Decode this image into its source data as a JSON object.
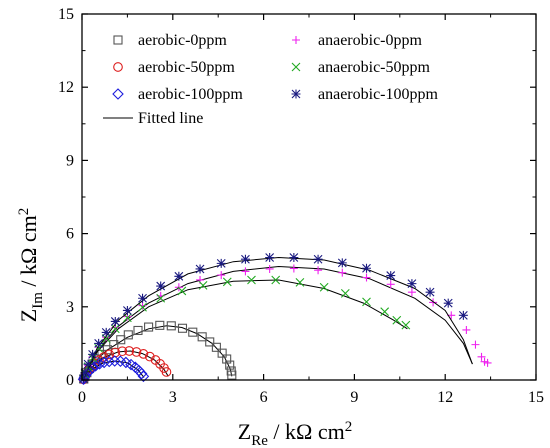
{
  "chart_data": {
    "type": "scatter",
    "xlabel": {
      "main": "Z",
      "sub": "Re",
      "rest": " / kΩ cm",
      "sup": "2"
    },
    "ylabel": {
      "main": "Z",
      "sub": "Im",
      "rest": " / kΩ cm",
      "sup": "2"
    },
    "xlim": [
      0,
      15
    ],
    "ylim": [
      0,
      15
    ],
    "xticks": [
      0,
      3,
      6,
      9,
      12,
      15
    ],
    "yticks": [
      0,
      3,
      6,
      9,
      12,
      15
    ],
    "xtick_labels": [
      "0",
      "3",
      "6",
      "9",
      "12",
      "15"
    ],
    "ytick_labels": [
      "0",
      "3",
      "6",
      "9",
      "12",
      "15"
    ],
    "legend_position": "top",
    "series": [
      {
        "name": "aerobic-0ppm",
        "marker": "square",
        "color": "#555555",
        "points": [
          [
            0.06,
            0.04
          ],
          [
            0.1,
            0.15
          ],
          [
            0.16,
            0.3
          ],
          [
            0.25,
            0.47
          ],
          [
            0.36,
            0.66
          ],
          [
            0.5,
            0.86
          ],
          [
            0.66,
            1.05
          ],
          [
            0.84,
            1.24
          ],
          [
            1.05,
            1.45
          ],
          [
            1.28,
            1.65
          ],
          [
            1.53,
            1.85
          ],
          [
            1.85,
            2.03
          ],
          [
            2.2,
            2.17
          ],
          [
            2.57,
            2.24
          ],
          [
            2.95,
            2.22
          ],
          [
            3.32,
            2.12
          ],
          [
            3.66,
            1.96
          ],
          [
            3.97,
            1.77
          ],
          [
            4.22,
            1.56
          ],
          [
            4.44,
            1.34
          ],
          [
            4.63,
            1.1
          ],
          [
            4.78,
            0.86
          ],
          [
            4.88,
            0.61
          ],
          [
            4.93,
            0.37
          ],
          [
            4.95,
            0.2
          ]
        ],
        "fit": [
          [
            0.05,
            0.02
          ],
          [
            0.3,
            0.6
          ],
          [
            0.8,
            1.2
          ],
          [
            1.5,
            1.75
          ],
          [
            2.2,
            2.1
          ],
          [
            2.8,
            2.22
          ],
          [
            3.3,
            2.15
          ],
          [
            3.8,
            1.9
          ],
          [
            4.3,
            1.5
          ],
          [
            4.7,
            0.95
          ],
          [
            4.9,
            0.45
          ],
          [
            4.95,
            0.15
          ]
        ]
      },
      {
        "name": "aerobic-50ppm",
        "marker": "circle",
        "color": "#dd1c1c",
        "points": [
          [
            0.05,
            0.03
          ],
          [
            0.09,
            0.12
          ],
          [
            0.14,
            0.24
          ],
          [
            0.22,
            0.38
          ],
          [
            0.31,
            0.52
          ],
          [
            0.42,
            0.67
          ],
          [
            0.56,
            0.81
          ],
          [
            0.72,
            0.94
          ],
          [
            0.9,
            1.05
          ],
          [
            1.1,
            1.13
          ],
          [
            1.33,
            1.18
          ],
          [
            1.56,
            1.19
          ],
          [
            1.8,
            1.15
          ],
          [
            2.03,
            1.07
          ],
          [
            2.24,
            0.96
          ],
          [
            2.43,
            0.82
          ],
          [
            2.58,
            0.66
          ],
          [
            2.71,
            0.49
          ],
          [
            2.79,
            0.33
          ]
        ],
        "fit": [
          [
            0.05,
            0.02
          ],
          [
            0.3,
            0.5
          ],
          [
            0.7,
            0.92
          ],
          [
            1.2,
            1.15
          ],
          [
            1.6,
            1.19
          ],
          [
            2.0,
            1.08
          ],
          [
            2.4,
            0.82
          ],
          [
            2.7,
            0.45
          ],
          [
            2.85,
            0.15
          ]
        ]
      },
      {
        "name": "aerobic-100ppm",
        "marker": "diamond",
        "color": "#1c1cdd",
        "points": [
          [
            0.05,
            0.03
          ],
          [
            0.08,
            0.1
          ],
          [
            0.12,
            0.19
          ],
          [
            0.18,
            0.29
          ],
          [
            0.25,
            0.39
          ],
          [
            0.34,
            0.49
          ],
          [
            0.45,
            0.58
          ],
          [
            0.58,
            0.66
          ],
          [
            0.73,
            0.72
          ],
          [
            0.9,
            0.76
          ],
          [
            1.08,
            0.78
          ],
          [
            1.27,
            0.77
          ],
          [
            1.45,
            0.72
          ],
          [
            1.62,
            0.63
          ],
          [
            1.76,
            0.52
          ],
          [
            1.88,
            0.39
          ],
          [
            1.97,
            0.26
          ],
          [
            2.03,
            0.15
          ]
        ],
        "fit": [
          [
            0.05,
            0.02
          ],
          [
            0.3,
            0.42
          ],
          [
            0.7,
            0.7
          ],
          [
            1.1,
            0.78
          ],
          [
            1.5,
            0.7
          ],
          [
            1.85,
            0.42
          ],
          [
            2.05,
            0.1
          ]
        ]
      },
      {
        "name": "anaerobic-0ppm",
        "marker": "plus",
        "color": "#ee22ee",
        "points": [
          [
            0.05,
            0.05
          ],
          [
            0.1,
            0.3
          ],
          [
            0.2,
            0.6
          ],
          [
            0.35,
            0.95
          ],
          [
            0.55,
            1.35
          ],
          [
            0.8,
            1.75
          ],
          [
            1.1,
            2.15
          ],
          [
            1.5,
            2.6
          ],
          [
            2.0,
            3.05
          ],
          [
            2.6,
            3.45
          ],
          [
            3.2,
            3.8
          ],
          [
            3.9,
            4.1
          ],
          [
            4.6,
            4.3
          ],
          [
            5.4,
            4.45
          ],
          [
            6.2,
            4.55
          ],
          [
            7.0,
            4.57
          ],
          [
            7.8,
            4.5
          ],
          [
            8.6,
            4.4
          ],
          [
            9.4,
            4.2
          ],
          [
            10.2,
            3.92
          ],
          [
            10.9,
            3.6
          ],
          [
            11.6,
            3.18
          ],
          [
            12.2,
            2.65
          ],
          [
            12.7,
            2.05
          ],
          [
            13.0,
            1.45
          ],
          [
            13.2,
            0.95
          ],
          [
            13.3,
            0.75
          ],
          [
            13.4,
            0.7
          ]
        ],
        "fit": [
          [
            0.05,
            0.02
          ],
          [
            0.5,
            1.2
          ],
          [
            1.2,
            2.2
          ],
          [
            2.2,
            3.15
          ],
          [
            3.5,
            3.95
          ],
          [
            5.0,
            4.45
          ],
          [
            6.5,
            4.65
          ],
          [
            8.0,
            4.55
          ],
          [
            9.5,
            4.15
          ],
          [
            11.0,
            3.35
          ],
          [
            12.0,
            2.45
          ],
          [
            12.6,
            1.5
          ],
          [
            12.9,
            0.65
          ]
        ]
      },
      {
        "name": "anaerobic-50ppm",
        "marker": "x",
        "color": "#22aa22",
        "points": [
          [
            0.05,
            0.05
          ],
          [
            0.1,
            0.25
          ],
          [
            0.2,
            0.55
          ],
          [
            0.35,
            0.9
          ],
          [
            0.55,
            1.3
          ],
          [
            0.8,
            1.7
          ],
          [
            1.1,
            2.1
          ],
          [
            1.5,
            2.55
          ],
          [
            2.0,
            2.98
          ],
          [
            2.6,
            3.35
          ],
          [
            3.3,
            3.65
          ],
          [
            4.0,
            3.88
          ],
          [
            4.8,
            4.02
          ],
          [
            5.6,
            4.1
          ],
          [
            6.4,
            4.1
          ],
          [
            7.2,
            4.0
          ],
          [
            8.0,
            3.8
          ],
          [
            8.7,
            3.55
          ],
          [
            9.4,
            3.2
          ],
          [
            10.0,
            2.8
          ],
          [
            10.4,
            2.45
          ],
          [
            10.7,
            2.25
          ]
        ],
        "fit": [
          [
            0.05,
            0.02
          ],
          [
            0.5,
            1.15
          ],
          [
            1.2,
            2.1
          ],
          [
            2.2,
            3.0
          ],
          [
            3.5,
            3.7
          ],
          [
            5.0,
            4.05
          ],
          [
            6.5,
            4.1
          ],
          [
            8.0,
            3.75
          ],
          [
            9.3,
            3.15
          ],
          [
            10.3,
            2.45
          ],
          [
            10.75,
            2.1
          ]
        ]
      },
      {
        "name": "anaerobic-100ppm",
        "marker": "asterisk",
        "color": "#1a1a80",
        "points": [
          [
            0.05,
            0.05
          ],
          [
            0.1,
            0.3
          ],
          [
            0.2,
            0.65
          ],
          [
            0.35,
            1.05
          ],
          [
            0.55,
            1.5
          ],
          [
            0.8,
            1.95
          ],
          [
            1.1,
            2.4
          ],
          [
            1.5,
            2.85
          ],
          [
            2.0,
            3.35
          ],
          [
            2.6,
            3.85
          ],
          [
            3.2,
            4.25
          ],
          [
            3.9,
            4.55
          ],
          [
            4.6,
            4.78
          ],
          [
            5.4,
            4.95
          ],
          [
            6.2,
            5.02
          ],
          [
            7.0,
            5.02
          ],
          [
            7.8,
            4.95
          ],
          [
            8.6,
            4.8
          ],
          [
            9.4,
            4.58
          ],
          [
            10.2,
            4.28
          ],
          [
            10.9,
            3.95
          ],
          [
            11.5,
            3.6
          ],
          [
            12.1,
            3.15
          ],
          [
            12.6,
            2.65
          ]
        ],
        "fit": [
          [
            0.05,
            0.02
          ],
          [
            0.5,
            1.3
          ],
          [
            1.2,
            2.45
          ],
          [
            2.2,
            3.45
          ],
          [
            3.5,
            4.35
          ],
          [
            5.0,
            4.85
          ],
          [
            6.5,
            5.02
          ],
          [
            8.0,
            4.92
          ],
          [
            9.5,
            4.5
          ],
          [
            11.0,
            3.75
          ],
          [
            12.0,
            2.85
          ],
          [
            12.6,
            1.65
          ],
          [
            12.9,
            0.65
          ]
        ]
      }
    ],
    "fitted_line_label": "Fitted line"
  }
}
